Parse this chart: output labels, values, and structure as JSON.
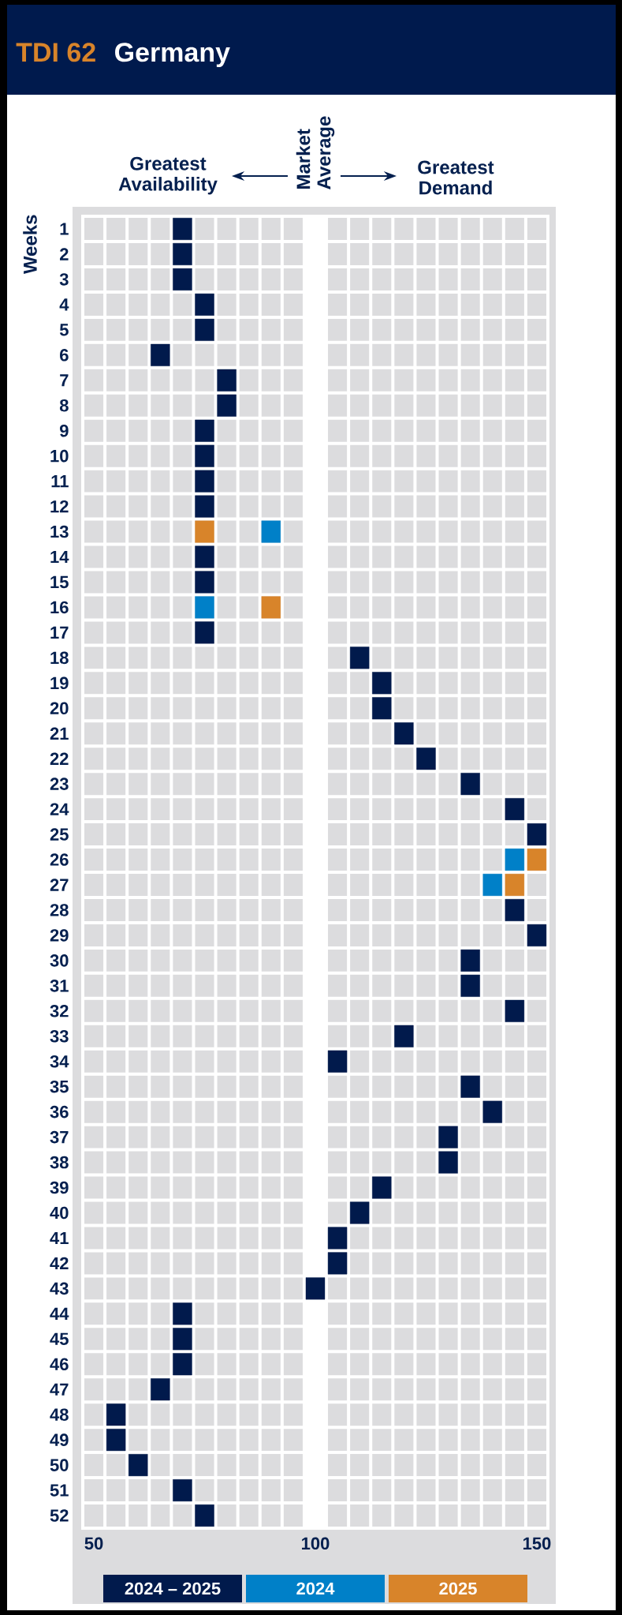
{
  "chart_data": {
    "type": "scatter",
    "orientation": "horizontal",
    "title": "TDI 62",
    "subtitle": "Germany",
    "ylabel": "Weeks",
    "annotations": [
      "Greatest Availability",
      "Greatest Demand",
      "Market Average"
    ],
    "categories": [
      "1",
      "2",
      "3",
      "4",
      "5",
      "6",
      "7",
      "8",
      "9",
      "10",
      "11",
      "12",
      "13",
      "14",
      "15",
      "16",
      "17",
      "18",
      "19",
      "20",
      "21",
      "22",
      "23",
      "24",
      "25",
      "26",
      "27",
      "28",
      "29",
      "30",
      "31",
      "32",
      "33",
      "34",
      "35",
      "36",
      "37",
      "38",
      "39",
      "40",
      "41",
      "42",
      "43",
      "44",
      "45",
      "46",
      "47",
      "48",
      "49",
      "50",
      "51",
      "52"
    ],
    "series": [
      {
        "name": "2024 – 2025",
        "color": "#011a4c",
        "values": [
          70,
          70,
          70,
          75,
          75,
          65,
          80,
          80,
          75,
          75,
          75,
          75,
          null,
          75,
          75,
          null,
          75,
          110,
          115,
          115,
          120,
          125,
          135,
          145,
          150,
          null,
          null,
          145,
          150,
          135,
          135,
          145,
          120,
          105,
          135,
          140,
          130,
          130,
          115,
          110,
          105,
          105,
          100,
          70,
          70,
          70,
          65,
          55,
          55,
          60,
          70,
          75
        ]
      },
      {
        "name": "2024",
        "color": "#0080c8",
        "values": [
          null,
          null,
          null,
          null,
          null,
          null,
          null,
          null,
          null,
          null,
          null,
          null,
          90,
          null,
          null,
          75,
          null,
          null,
          null,
          null,
          null,
          null,
          null,
          null,
          null,
          145,
          140,
          null,
          null,
          null,
          null,
          null,
          null,
          null,
          null,
          null,
          null,
          null,
          null,
          null,
          null,
          null,
          null,
          null,
          null,
          null,
          null,
          null,
          null,
          null,
          null,
          null
        ]
      },
      {
        "name": "2025",
        "color": "#d8842a",
        "values": [
          null,
          null,
          null,
          null,
          null,
          null,
          null,
          null,
          null,
          null,
          null,
          null,
          75,
          null,
          null,
          90,
          null,
          null,
          null,
          null,
          null,
          null,
          null,
          null,
          null,
          150,
          145,
          null,
          null,
          null,
          null,
          null,
          null,
          null,
          null,
          null,
          null,
          null,
          null,
          null,
          null,
          null,
          null,
          null,
          null,
          null,
          null,
          null,
          null,
          null,
          null,
          null
        ]
      }
    ],
    "xlim": [
      47.5,
      152.5
    ],
    "xticks": [
      50,
      100,
      150
    ],
    "bands": [
      {
        "axis": "x",
        "from": 97.5,
        "to": 102.5,
        "color": "#ffffff"
      }
    ],
    "marker": "square",
    "grid": true,
    "legend": "bottom"
  }
}
